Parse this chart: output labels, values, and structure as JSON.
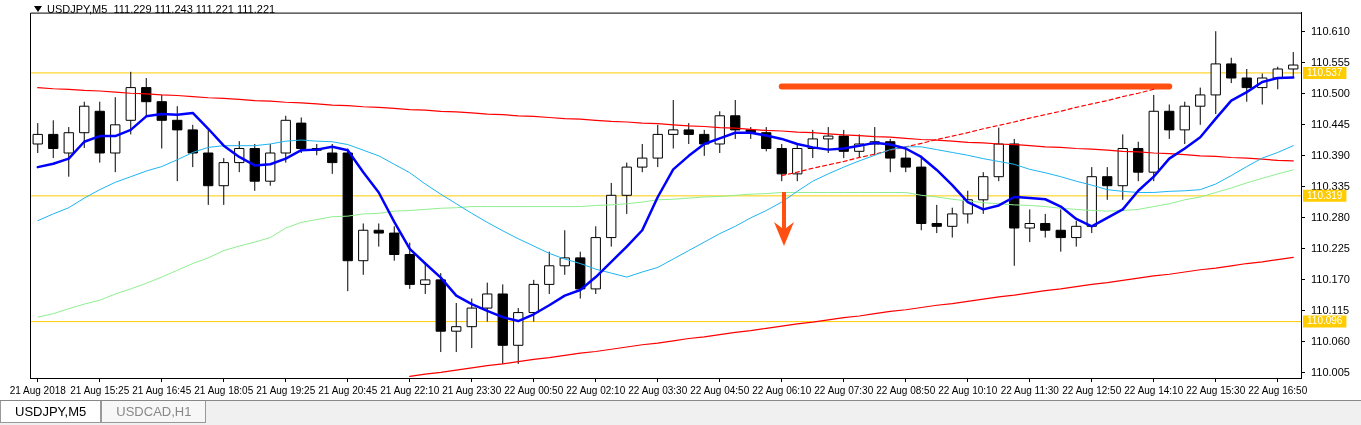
{
  "chart_data": {
    "type": "candlestick",
    "title": "USDJPY,M5  111.229 111.243 111.221 111.221",
    "color": "#000000",
    "marker": "none",
    "colors": [
      "#ffffff",
      "#000000",
      "#ffffff",
      "#ffffff",
      "#000000",
      "#ffffff",
      "#ffffff",
      "#000000",
      "#000000",
      "#000000",
      "#000000",
      "#000000",
      "#ffffff",
      "#ffffff",
      "#000000",
      "#ffffff",
      "#ffffff",
      "#000000",
      "#000000",
      "#000000",
      "#000000",
      "#ffffff",
      "#000000",
      "#000000",
      "#000000",
      "#ffffff",
      "#000000",
      "#ffffff",
      "#ffffff",
      "#ffffff",
      "#000000",
      "#ffffff",
      "#ffffff",
      "#ffffff",
      "#ffffff",
      "#000000",
      "#ffffff",
      "#ffffff",
      "#ffffff",
      "#ffffff",
      "#ffffff",
      "#ffffff",
      "#000000",
      "#000000",
      "#ffffff",
      "#000000",
      "#000000",
      "#000000",
      "#000000",
      "#ffffff",
      "#ffffff",
      "#ffffff",
      "#000000",
      "#ffffff",
      "#ffffff",
      "#000000",
      "#000000",
      "#000000",
      "#000000",
      "#ffffff",
      "#ffffff",
      "#ffffff",
      "#ffffff",
      "#000000",
      "#ffffff",
      "#000000",
      "#000000",
      "#ffffff",
      "#ffffff",
      "#000000",
      "#ffffff",
      "#000000",
      "#ffffff",
      "#000000",
      "#ffffff",
      "#ffffff",
      "#ffffff",
      "#000000",
      "#000000",
      "#ffffff",
      "#ffffff",
      "#ffffff"
    ],
    "ylim": [
      109.996,
      110.644
    ],
    "yticks": [
      110.005,
      {
        "value": 110.06,
        "label": "110.060"
      },
      110.115,
      {
        "value": 110.17,
        "label": "110.170"
      },
      110.225,
      {
        "value": 110.28,
        "label": "110.280"
      },
      110.335,
      {
        "value": 110.39,
        "label": "110.390"
      },
      110.445,
      {
        "value": 110.5,
        "label": "110.500"
      },
      110.555,
      {
        "value": 110.61,
        "label": "110.610"
      }
    ],
    "categories": [
      "21 Aug 2018",
      null,
      null,
      null,
      "21 Aug 15:25",
      null,
      null,
      null,
      "21 Aug 16:45",
      null,
      null,
      null,
      "21 Aug 18:05",
      null,
      null,
      null,
      "21 Aug 19:25",
      null,
      null,
      null,
      "21 Aug 20:45",
      null,
      null,
      null,
      "21 Aug 22:10",
      null,
      null,
      null,
      "21 Aug 23:30",
      null,
      null,
      null,
      "22 Aug 00:50",
      null,
      null,
      null,
      "22 Aug 02:10",
      null,
      null,
      null,
      "22 Aug 03:30",
      null,
      null,
      null,
      "22 Aug 04:50",
      null,
      null,
      null,
      "22 Aug 06:10",
      null,
      null,
      null,
      "22 Aug 07:30",
      null,
      null,
      null,
      "22 Aug 08:50",
      null,
      null,
      null,
      "22 Aug 10:10",
      null,
      null,
      null,
      "22 Aug 11:30",
      null,
      null,
      null,
      "22 Aug 12:50",
      null,
      null,
      null,
      "22 Aug 14:10",
      null,
      null,
      null,
      "22 Aug 15:30",
      null,
      null,
      null,
      "22 Aug 16:50",
      null
    ],
    "ohlc": [
      [
        110.411,
        110.448,
        110.395,
        110.428
      ],
      [
        110.428,
        110.453,
        110.386,
        110.403
      ],
      [
        110.395,
        110.441,
        110.353,
        110.431
      ],
      [
        110.431,
        110.486,
        110.404,
        110.478
      ],
      [
        110.469,
        110.486,
        110.378,
        110.395
      ],
      [
        110.395,
        110.494,
        110.361,
        110.445
      ],
      [
        110.453,
        110.539,
        110.428,
        110.511
      ],
      [
        110.511,
        110.528,
        110.461,
        110.486
      ],
      [
        110.486,
        110.498,
        110.403,
        110.453
      ],
      [
        110.453,
        110.478,
        110.345,
        110.436
      ],
      [
        110.436,
        110.445,
        110.37,
        110.395
      ],
      [
        110.395,
        110.436,
        110.303,
        110.337
      ],
      [
        110.337,
        110.386,
        110.303,
        110.378
      ],
      [
        110.378,
        110.416,
        110.361,
        110.403
      ],
      [
        110.403,
        110.411,
        110.328,
        110.345
      ],
      [
        110.345,
        110.411,
        110.337,
        110.395
      ],
      [
        110.395,
        110.461,
        110.378,
        110.453
      ],
      [
        110.448,
        110.458,
        110.395,
        110.403
      ],
      [
        110.403,
        110.411,
        110.391,
        110.4
      ],
      [
        110.395,
        110.411,
        110.358,
        110.378
      ],
      [
        110.395,
        110.403,
        110.15,
        110.204
      ],
      [
        110.204,
        110.27,
        110.179,
        110.258
      ],
      [
        110.258,
        110.27,
        110.229,
        110.253
      ],
      [
        110.253,
        110.265,
        110.204,
        110.215
      ],
      [
        110.215,
        110.236,
        110.154,
        110.162
      ],
      [
        110.162,
        110.199,
        110.145,
        110.17
      ],
      [
        110.17,
        110.182,
        110.042,
        110.079
      ],
      [
        110.079,
        110.129,
        110.042,
        110.087
      ],
      [
        110.087,
        110.137,
        110.049,
        110.12
      ],
      [
        110.12,
        110.165,
        110.096,
        110.145
      ],
      [
        110.145,
        110.162,
        110.021,
        110.054
      ],
      [
        110.054,
        110.12,
        110.021,
        110.112
      ],
      [
        110.112,
        110.17,
        110.096,
        110.162
      ],
      [
        110.162,
        110.22,
        110.145,
        110.195
      ],
      [
        110.195,
        110.258,
        110.179,
        110.209
      ],
      [
        110.209,
        110.22,
        110.137,
        110.154
      ],
      [
        110.154,
        110.265,
        110.145,
        110.245
      ],
      [
        110.245,
        110.342,
        110.229,
        110.32
      ],
      [
        110.32,
        110.378,
        110.287,
        110.37
      ],
      [
        110.37,
        110.411,
        110.361,
        110.386
      ],
      [
        110.386,
        110.445,
        110.37,
        110.428
      ],
      [
        110.428,
        110.489,
        110.403,
        110.436
      ],
      [
        110.436,
        110.448,
        110.411,
        110.428
      ],
      [
        110.428,
        110.436,
        110.39,
        110.411
      ],
      [
        110.411,
        110.469,
        110.395,
        110.461
      ],
      [
        110.461,
        110.489,
        110.42,
        110.436
      ],
      [
        110.436,
        110.441,
        110.42,
        110.431
      ],
      [
        110.431,
        110.441,
        110.398,
        110.403
      ],
      [
        110.403,
        110.411,
        110.345,
        110.358
      ],
      [
        110.358,
        110.411,
        110.345,
        110.403
      ],
      [
        110.403,
        110.436,
        110.386,
        110.42
      ],
      [
        110.42,
        110.441,
        110.395,
        110.425
      ],
      [
        110.425,
        110.436,
        110.386,
        110.398
      ],
      [
        110.398,
        110.428,
        110.386,
        110.411
      ],
      [
        110.411,
        110.441,
        110.391,
        110.415
      ],
      [
        110.415,
        110.42,
        110.361,
        110.386
      ],
      [
        110.386,
        110.403,
        110.361,
        110.37
      ],
      [
        110.37,
        110.386,
        110.258,
        110.27
      ],
      [
        110.27,
        110.303,
        110.253,
        110.265
      ],
      [
        110.265,
        110.298,
        110.245,
        110.287
      ],
      [
        110.287,
        110.328,
        110.27,
        110.312
      ],
      [
        110.312,
        110.361,
        110.287,
        110.353
      ],
      [
        110.353,
        110.44,
        110.345,
        110.411
      ],
      [
        110.411,
        110.42,
        110.195,
        110.262
      ],
      [
        110.262,
        110.295,
        110.237,
        110.27
      ],
      [
        110.27,
        110.287,
        110.245,
        110.258
      ],
      [
        110.258,
        110.295,
        110.22,
        110.245
      ],
      [
        110.245,
        110.275,
        110.229,
        110.265
      ],
      [
        110.265,
        110.37,
        110.253,
        110.353
      ],
      [
        110.353,
        110.37,
        110.312,
        110.337
      ],
      [
        110.337,
        110.428,
        110.312,
        110.403
      ],
      [
        110.403,
        110.415,
        110.345,
        110.361
      ],
      [
        110.361,
        110.498,
        110.345,
        110.469
      ],
      [
        110.469,
        110.481,
        110.42,
        110.436
      ],
      [
        110.436,
        110.486,
        110.411,
        110.478
      ],
      [
        110.478,
        110.511,
        110.445,
        110.498
      ],
      [
        110.498,
        110.611,
        110.464,
        110.553
      ],
      [
        110.553,
        110.564,
        110.519,
        110.528
      ],
      [
        110.528,
        110.544,
        110.486,
        110.511
      ],
      [
        110.511,
        110.536,
        110.481,
        110.528
      ],
      [
        110.528,
        110.548,
        110.508,
        110.544
      ],
      [
        110.544,
        110.574,
        110.528,
        110.551
      ]
    ],
    "series": [
      {
        "type": "line",
        "color": "#0000ff",
        "values": [
          110.37,
          110.376,
          110.385,
          110.415,
          110.425,
          110.425,
          110.436,
          110.46,
          110.464,
          110.463,
          110.466,
          110.438,
          110.408,
          110.388,
          110.373,
          110.375,
          110.385,
          110.4,
          110.401,
          110.406,
          110.4,
          110.361,
          110.325,
          110.273,
          110.225,
          110.199,
          110.174,
          110.142,
          110.127,
          110.115,
          110.104,
          110.097,
          110.109,
          110.125,
          110.142,
          110.152,
          110.175,
          110.202,
          110.229,
          110.258,
          110.317,
          110.366,
          110.39,
          110.411,
          110.421,
          110.431,
          110.431,
          110.426,
          110.42,
          110.411,
          110.405,
          110.401,
          110.403,
          110.408,
          110.413,
          110.41,
          110.403,
          110.388,
          110.365,
          110.338,
          110.308,
          110.295,
          110.302,
          110.317,
          110.315,
          110.313,
          110.3,
          110.278,
          110.265,
          110.28,
          110.295,
          110.328,
          110.353,
          110.385,
          110.403,
          110.423,
          110.456,
          110.488,
          110.503,
          110.521,
          110.528,
          110.529
        ]
      },
      {
        "type": "line",
        "color": "#1eb4f0",
        "values": [
          110.275,
          110.287,
          110.298,
          110.315,
          110.33,
          110.343,
          110.353,
          110.363,
          110.371,
          110.383,
          110.396,
          110.405,
          110.408,
          110.408,
          110.408,
          110.411,
          110.416,
          110.418,
          110.416,
          110.415,
          110.41,
          110.4,
          110.39,
          110.375,
          110.36,
          110.34,
          110.322,
          110.305,
          110.288,
          110.272,
          110.257,
          110.243,
          110.23,
          110.217,
          110.207,
          110.199,
          110.189,
          110.182,
          110.175,
          110.184,
          110.192,
          110.207,
          110.222,
          110.237,
          110.252,
          110.265,
          110.28,
          110.293,
          110.308,
          110.327,
          110.345,
          110.358,
          110.37,
          110.381,
          110.391,
          110.401,
          110.406,
          110.406,
          110.401,
          110.396,
          110.391,
          110.385,
          110.38,
          110.375,
          110.366,
          110.36,
          110.353,
          110.345,
          110.338,
          110.33,
          110.327,
          110.325,
          110.325,
          110.327,
          110.328,
          110.33,
          110.34,
          110.355,
          110.371,
          110.386,
          110.396,
          110.408
        ]
      },
      {
        "type": "line",
        "color": "#90ee90",
        "values": [
          110.104,
          110.11,
          110.119,
          110.127,
          110.134,
          110.145,
          110.154,
          110.164,
          110.175,
          110.187,
          110.199,
          110.209,
          110.222,
          110.23,
          110.237,
          110.245,
          110.262,
          110.272,
          110.277,
          110.282,
          110.283,
          110.287,
          110.288,
          110.292,
          110.293,
          110.295,
          110.297,
          110.298,
          110.3,
          110.3,
          110.3,
          110.3,
          110.3,
          110.3,
          110.3,
          110.3,
          110.302,
          110.303,
          110.305,
          110.308,
          110.312,
          110.313,
          110.315,
          110.317,
          110.318,
          110.32,
          110.322,
          110.323,
          110.325,
          110.325,
          110.325,
          110.325,
          110.325,
          110.325,
          110.325,
          110.325,
          110.325,
          110.32,
          110.317,
          110.313,
          110.31,
          110.307,
          110.305,
          110.303,
          110.302,
          110.3,
          110.297,
          110.295,
          110.293,
          110.292,
          110.293,
          110.295,
          110.3,
          110.305,
          110.312,
          110.317,
          110.325,
          110.333,
          110.342,
          110.35,
          110.358,
          110.365
        ]
      },
      {
        "type": "line",
        "color": "#ff0000",
        "values": [
          110.511,
          110.509,
          110.508,
          110.506,
          110.505,
          110.503,
          110.501,
          110.5,
          110.498,
          110.497,
          110.495,
          110.493,
          110.492,
          110.49,
          110.488,
          110.487,
          110.485,
          110.484,
          110.482,
          110.48,
          110.479,
          110.477,
          110.476,
          110.474,
          110.472,
          110.471,
          110.469,
          110.468,
          110.466,
          110.464,
          110.463,
          110.461,
          110.46,
          110.458,
          110.456,
          110.455,
          110.453,
          110.451,
          110.45,
          110.448,
          110.447,
          110.445,
          110.443,
          110.442,
          110.44,
          110.439,
          110.437,
          110.435,
          110.434,
          110.432,
          110.431,
          110.429,
          110.427,
          110.426,
          110.424,
          110.423,
          110.421,
          110.419,
          110.418,
          110.416,
          110.414,
          110.413,
          110.411,
          110.41,
          110.408,
          110.406,
          110.405,
          110.403,
          110.402,
          110.4,
          110.398,
          110.397,
          110.395,
          110.394,
          110.392,
          110.39,
          110.389,
          110.387,
          110.386,
          110.384,
          110.382,
          110.381
        ]
      },
      {
        "type": "line",
        "color": "#ff0000",
        "values": [
          null,
          null,
          null,
          null,
          null,
          null,
          null,
          null,
          null,
          null,
          null,
          null,
          null,
          null,
          null,
          null,
          null,
          null,
          null,
          null,
          null,
          null,
          null,
          null,
          109.999,
          110.003,
          110.006,
          110.01,
          110.014,
          110.018,
          110.021,
          110.025,
          110.029,
          110.032,
          110.036,
          110.04,
          110.043,
          110.047,
          110.051,
          110.055,
          110.058,
          110.062,
          110.066,
          110.069,
          110.073,
          110.077,
          110.08,
          110.084,
          110.088,
          110.092,
          110.095,
          110.099,
          110.103,
          110.106,
          110.11,
          110.114,
          110.117,
          110.121,
          110.125,
          110.128,
          110.132,
          110.136,
          110.14,
          110.143,
          110.147,
          110.151,
          110.154,
          110.158,
          110.162,
          110.165,
          110.169,
          110.173,
          110.177,
          110.18,
          110.184,
          110.188,
          110.191,
          110.195,
          110.199,
          110.202,
          110.206,
          110.21
        ]
      },
      {
        "type": "line",
        "color": "#ff0000",
        "line_style": "dashed",
        "values": [
          null,
          null,
          null,
          null,
          null,
          null,
          null,
          null,
          null,
          null,
          null,
          null,
          null,
          null,
          null,
          null,
          null,
          null,
          null,
          null,
          null,
          null,
          null,
          null,
          null,
          null,
          null,
          null,
          null,
          null,
          null,
          null,
          null,
          null,
          null,
          null,
          null,
          null,
          null,
          null,
          null,
          null,
          null,
          null,
          null,
          null,
          null,
          null,
          110.355,
          110.361,
          110.368,
          110.374,
          110.38,
          110.387,
          110.393,
          110.4,
          110.406,
          110.412,
          110.419,
          110.425,
          110.431,
          110.438,
          110.444,
          110.45,
          110.457,
          110.463,
          110.469,
          110.476,
          110.482,
          110.488,
          110.495,
          110.501,
          110.508,
          null,
          null,
          null,
          null,
          null,
          null,
          null,
          null,
          null
        ]
      },
      {
        "type": "line",
        "color": "#ff5011",
        "values": [
          null,
          null,
          null,
          null,
          null,
          null,
          null,
          null,
          null,
          null,
          null,
          null,
          null,
          null,
          null,
          null,
          null,
          null,
          null,
          null,
          null,
          null,
          null,
          null,
          null,
          null,
          null,
          null,
          null,
          null,
          null,
          null,
          null,
          null,
          null,
          null,
          null,
          null,
          null,
          null,
          null,
          null,
          null,
          null,
          null,
          null,
          null,
          null,
          110.513,
          110.513,
          110.513,
          110.513,
          110.513,
          110.513,
          110.513,
          110.513,
          110.513,
          110.513,
          110.513,
          110.513,
          110.513,
          110.513,
          110.513,
          110.513,
          110.513,
          110.513,
          110.513,
          110.513,
          110.513,
          110.513,
          110.513,
          110.513,
          110.513,
          110.513,
          null,
          null,
          null,
          null,
          null,
          null,
          null,
          null
        ]
      }
    ],
    "ref_lines": [
      {
        "axis": "y",
        "value": 110.537,
        "label": "110.537",
        "color": "#ffcc00"
      },
      {
        "axis": "y",
        "value": 110.319,
        "label": "110.319",
        "color": "#ffcc00"
      },
      {
        "axis": "y",
        "value": 110.096,
        "label": "110.096",
        "color": "#ffcc00"
      }
    ],
    "annotations": [
      "USDJPY,M5",
      "USDCAD,H1"
    ]
  }
}
